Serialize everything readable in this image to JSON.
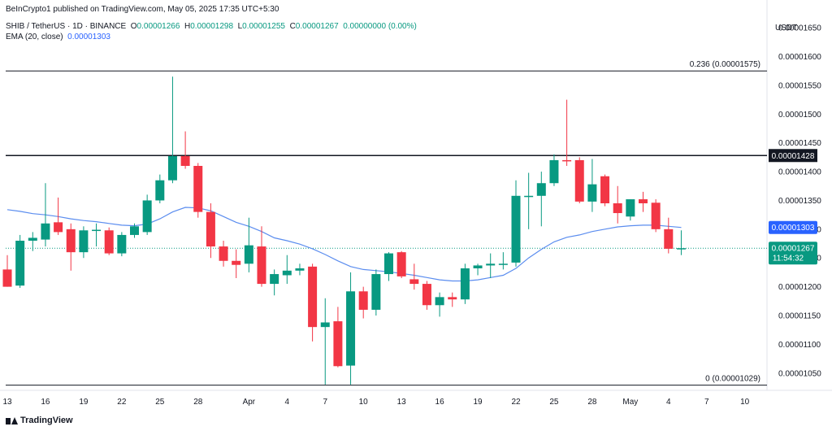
{
  "header": {
    "published": "BeInCrypto1 published on TradingView.com, May 05, 2025 17:35 UTC+5:30",
    "symbol": "SHIB / TetherUS · 1D · BINANCE",
    "ohlc": {
      "o_label": "O",
      "o": "0.00001266",
      "h_label": "H",
      "h": "0.00001298",
      "l_label": "L",
      "l": "0.00001255",
      "c_label": "C",
      "c": "0.00001267",
      "change": "0.00000000 (0.00%)"
    },
    "ema_label": "EMA (20, close)",
    "ema_value": "0.00001303"
  },
  "footer": {
    "brand": "TradingView"
  },
  "chart_data": {
    "type": "candlestick",
    "currency": "USDT",
    "ylim": [
      1.02e-05,
      1.67e-05
    ],
    "y_ticks": [
      "0.00001650",
      "0.00001600",
      "0.00001550",
      "0.00001500",
      "0.00001450",
      "0.00001400",
      "0.00001350",
      "0.00001300",
      "0.00001250",
      "0.00001200",
      "0.00001150",
      "0.00001100",
      "0.00001050"
    ],
    "x_ticks": [
      {
        "i": 0,
        "label": "13"
      },
      {
        "i": 3,
        "label": "16"
      },
      {
        "i": 6,
        "label": "19"
      },
      {
        "i": 9,
        "label": "22"
      },
      {
        "i": 12,
        "label": "25"
      },
      {
        "i": 15,
        "label": "28"
      },
      {
        "i": 19,
        "label": "Apr"
      },
      {
        "i": 22,
        "label": "4"
      },
      {
        "i": 25,
        "label": "7"
      },
      {
        "i": 28,
        "label": "10"
      },
      {
        "i": 31,
        "label": "13"
      },
      {
        "i": 34,
        "label": "16"
      },
      {
        "i": 37,
        "label": "19"
      },
      {
        "i": 40,
        "label": "22"
      },
      {
        "i": 43,
        "label": "25"
      },
      {
        "i": 46,
        "label": "28"
      },
      {
        "i": 49,
        "label": "May"
      },
      {
        "i": 52,
        "label": "4"
      },
      {
        "i": 55,
        "label": "7"
      },
      {
        "i": 58,
        "label": "10"
      }
    ],
    "candles": [
      {
        "o": 1.23e-05,
        "h": 1.255e-05,
        "l": 1.2e-05,
        "c": 1.2e-05
      },
      {
        "o": 1.202e-05,
        "h": 1.29e-05,
        "l": 1.198e-05,
        "c": 1.28e-05
      },
      {
        "o": 1.28e-05,
        "h": 1.295e-05,
        "l": 1.262e-05,
        "c": 1.285e-05
      },
      {
        "o": 1.282e-05,
        "h": 1.38e-05,
        "l": 1.27e-05,
        "c": 1.31e-05
      },
      {
        "o": 1.312e-05,
        "h": 1.355e-05,
        "l": 1.29e-05,
        "c": 1.295e-05
      },
      {
        "o": 1.3e-05,
        "h": 1.31e-05,
        "l": 1.228e-05,
        "c": 1.26e-05
      },
      {
        "o": 1.26e-05,
        "h": 1.305e-05,
        "l": 1.25e-05,
        "c": 1.298e-05
      },
      {
        "o": 1.298e-05,
        "h": 1.31e-05,
        "l": 1.27e-05,
        "c": 1.299e-05
      },
      {
        "o": 1.298e-05,
        "h": 1.303e-05,
        "l": 1.255e-05,
        "c": 1.258e-05
      },
      {
        "o": 1.258e-05,
        "h": 1.295e-05,
        "l": 1.253e-05,
        "c": 1.29e-05
      },
      {
        "o": 1.29e-05,
        "h": 1.31e-05,
        "l": 1.285e-05,
        "c": 1.305e-05
      },
      {
        "o": 1.295e-05,
        "h": 1.36e-05,
        "l": 1.29e-05,
        "c": 1.35e-05
      },
      {
        "o": 1.35e-05,
        "h": 1.395e-05,
        "l": 1.345e-05,
        "c": 1.385e-05
      },
      {
        "o": 1.385e-05,
        "h": 1.565e-05,
        "l": 1.38e-05,
        "c": 1.427e-05
      },
      {
        "o": 1.427e-05,
        "h": 1.47e-05,
        "l": 1.405e-05,
        "c": 1.41e-05
      },
      {
        "o": 1.41e-05,
        "h": 1.415e-05,
        "l": 1.32e-05,
        "c": 1.33e-05
      },
      {
        "o": 1.33e-05,
        "h": 1.345e-05,
        "l": 1.25e-05,
        "c": 1.27e-05
      },
      {
        "o": 1.27e-05,
        "h": 1.28e-05,
        "l": 1.235e-05,
        "c": 1.245e-05
      },
      {
        "o": 1.245e-05,
        "h": 1.265e-05,
        "l": 1.215e-05,
        "c": 1.238e-05
      },
      {
        "o": 1.24e-05,
        "h": 1.32e-05,
        "l": 1.225e-05,
        "c": 1.272e-05
      },
      {
        "o": 1.27e-05,
        "h": 1.305e-05,
        "l": 1.2e-05,
        "c": 1.205e-05
      },
      {
        "o": 1.205e-05,
        "h": 1.23e-05,
        "l": 1.185e-05,
        "c": 1.222e-05
      },
      {
        "o": 1.22e-05,
        "h": 1.255e-05,
        "l": 1.205e-05,
        "c": 1.228e-05
      },
      {
        "o": 1.228e-05,
        "h": 1.24e-05,
        "l": 1.22e-05,
        "c": 1.232e-05
      },
      {
        "o": 1.235e-05,
        "h": 1.24e-05,
        "l": 1.105e-05,
        "c": 1.13e-05
      },
      {
        "o": 1.13e-05,
        "h": 1.18e-05,
        "l": 1.03e-05,
        "c": 1.138e-05
      },
      {
        "o": 1.14e-05,
        "h": 1.165e-05,
        "l": 1.06e-05,
        "c": 1.062e-05
      },
      {
        "o": 1.063e-05,
        "h": 1.225e-05,
        "l": 1.03e-05,
        "c": 1.192e-05
      },
      {
        "o": 1.192e-05,
        "h": 1.2e-05,
        "l": 1.145e-05,
        "c": 1.16e-05
      },
      {
        "o": 1.16e-05,
        "h": 1.23e-05,
        "l": 1.15e-05,
        "c": 1.222e-05
      },
      {
        "o": 1.222e-05,
        "h": 1.26e-05,
        "l": 1.21e-05,
        "c": 1.258e-05
      },
      {
        "o": 1.26e-05,
        "h": 1.262e-05,
        "l": 1.215e-05,
        "c": 1.218e-05
      },
      {
        "o": 1.213e-05,
        "h": 1.24e-05,
        "l": 1.195e-05,
        "c": 1.205e-05
      },
      {
        "o": 1.205e-05,
        "h": 1.21e-05,
        "l": 1.16e-05,
        "c": 1.168e-05
      },
      {
        "o": 1.168e-05,
        "h": 1.19e-05,
        "l": 1.148e-05,
        "c": 1.182e-05
      },
      {
        "o": 1.182e-05,
        "h": 1.19e-05,
        "l": 1.165e-05,
        "c": 1.178e-05
      },
      {
        "o": 1.178e-05,
        "h": 1.24e-05,
        "l": 1.17e-05,
        "c": 1.232e-05
      },
      {
        "o": 1.232e-05,
        "h": 1.24e-05,
        "l": 1.22e-05,
        "c": 1.237e-05
      },
      {
        "o": 1.237e-05,
        "h": 1.258e-05,
        "l": 1.215e-05,
        "c": 1.24e-05
      },
      {
        "o": 1.24e-05,
        "h": 1.26e-05,
        "l": 1.23e-05,
        "c": 1.24e-05
      },
      {
        "o": 1.242e-05,
        "h": 1.385e-05,
        "l": 1.235e-05,
        "c": 1.358e-05
      },
      {
        "o": 1.358e-05,
        "h": 1.398e-05,
        "l": 1.3e-05,
        "c": 1.358e-05
      },
      {
        "o": 1.358e-05,
        "h": 1.4e-05,
        "l": 1.305e-05,
        "c": 1.38e-05
      },
      {
        "o": 1.38e-05,
        "h": 1.43e-05,
        "l": 1.375e-05,
        "c": 1.42e-05
      },
      {
        "o": 1.42e-05,
        "h": 1.525e-05,
        "l": 1.41e-05,
        "c": 1.418e-05
      },
      {
        "o": 1.42e-05,
        "h": 1.425e-05,
        "l": 1.345e-05,
        "c": 1.348e-05
      },
      {
        "o": 1.348e-05,
        "h": 1.422e-05,
        "l": 1.33e-05,
        "c": 1.378e-05
      },
      {
        "o": 1.392e-05,
        "h": 1.395e-05,
        "l": 1.34e-05,
        "c": 1.345e-05
      },
      {
        "o": 1.345e-05,
        "h": 1.375e-05,
        "l": 1.31e-05,
        "c": 1.328e-05
      },
      {
        "o": 1.322e-05,
        "h": 1.352e-05,
        "l": 1.315e-05,
        "c": 1.352e-05
      },
      {
        "o": 1.352e-05,
        "h": 1.365e-05,
        "l": 1.33e-05,
        "c": 1.345e-05
      },
      {
        "o": 1.346e-05,
        "h": 1.352e-05,
        "l": 1.295e-05,
        "c": 1.3e-05
      },
      {
        "o": 1.3e-05,
        "h": 1.32e-05,
        "l": 1.258e-05,
        "c": 1.266e-05
      },
      {
        "o": 1.266e-05,
        "h": 1.298e-05,
        "l": 1.255e-05,
        "c": 1.267e-05
      }
    ],
    "ema": [
      1.334e-05,
      1.331e-05,
      1.327e-05,
      1.325e-05,
      1.322e-05,
      1.318e-05,
      1.315e-05,
      1.313e-05,
      1.31e-05,
      1.307e-05,
      1.306e-05,
      1.309e-05,
      1.318e-05,
      1.33e-05,
      1.338e-05,
      1.337e-05,
      1.332e-05,
      1.322e-05,
      1.312e-05,
      1.305e-05,
      1.296e-05,
      1.285e-05,
      1.28e-05,
      1.274e-05,
      1.266e-05,
      1.256e-05,
      1.245e-05,
      1.235e-05,
      1.23e-05,
      1.228e-05,
      1.226e-05,
      1.223e-05,
      1.22e-05,
      1.216e-05,
      1.212e-05,
      1.21e-05,
      1.21e-05,
      1.212e-05,
      1.216e-05,
      1.22e-05,
      1.232e-05,
      1.25e-05,
      1.265e-05,
      1.278e-05,
      1.286e-05,
      1.29e-05,
      1.296e-05,
      1.3e-05,
      1.304e-05,
      1.306e-05,
      1.307e-05,
      1.307e-05,
      1.305e-05,
      1.303e-05
    ],
    "ema_color": "#5b8def",
    "up_color": "#089981",
    "down_color": "#f23645",
    "horizontal_lines": [
      {
        "value": 1.575e-05,
        "label": "0.236 (0.00001575)",
        "color": "#131722"
      },
      {
        "value": 1.428e-05,
        "color": "#131722",
        "price_label": "0.00001428"
      },
      {
        "value": 1.029e-05,
        "label": "0 (0.00001029)",
        "color": "#131722"
      }
    ],
    "current_price": {
      "value": 1.267e-05,
      "label": "0.00001267",
      "timer": "11:54:32",
      "color": "#089981"
    },
    "ema_tag": {
      "value": 1.303e-05,
      "label": "0.00001303",
      "color": "#2962ff"
    },
    "grid": false
  }
}
